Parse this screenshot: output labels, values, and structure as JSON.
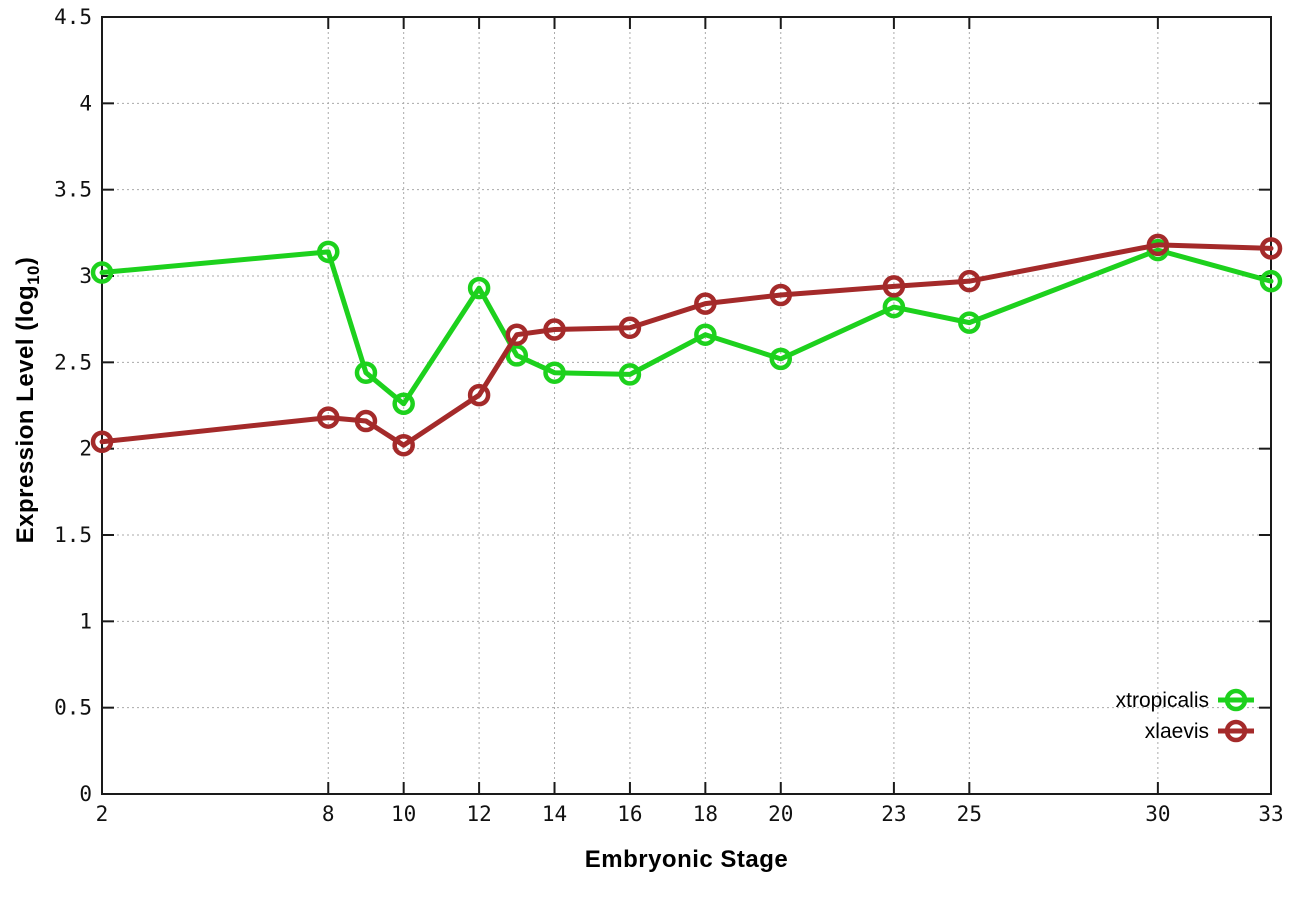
{
  "chart_data": {
    "type": "line",
    "title": "",
    "xlabel": "Embryonic Stage",
    "ylabel": {
      "prefix": "Expression Level (log",
      "sub": "10",
      "suffix": ")"
    },
    "xlim": [
      2,
      33
    ],
    "ylim": [
      0,
      4.5
    ],
    "grid": true,
    "legend_position": "bottom-right",
    "xticks": [
      2,
      8,
      10,
      12,
      14,
      16,
      18,
      20,
      23,
      25,
      30,
      33
    ],
    "xtick_labels": [
      "2",
      "8",
      "10",
      "12",
      "14",
      "16",
      "18",
      "20",
      "23",
      "25",
      "30",
      "33"
    ],
    "yticks": [
      0,
      0.5,
      1,
      1.5,
      2,
      2.5,
      3,
      3.5,
      4,
      4.5
    ],
    "ytick_labels": [
      "0",
      "0.5",
      "1",
      "1.5",
      "2",
      "2.5",
      "3",
      "3.5",
      "4",
      "4.5"
    ],
    "x": [
      2,
      8,
      9,
      10,
      12,
      13,
      14,
      16,
      18,
      20,
      23,
      25,
      30,
      33
    ],
    "series": [
      {
        "name": "xtropicalis",
        "color": "#1dd11d",
        "values": [
          3.02,
          3.14,
          2.44,
          2.26,
          2.93,
          2.54,
          2.44,
          2.43,
          2.66,
          2.52,
          2.82,
          2.73,
          3.15,
          2.97
        ]
      },
      {
        "name": "xlaevis",
        "color": "#a42a2a",
        "values": [
          2.04,
          2.18,
          2.16,
          2.02,
          2.31,
          2.66,
          2.69,
          2.7,
          2.84,
          2.89,
          2.94,
          2.97,
          3.18,
          3.16
        ]
      }
    ],
    "colors": {
      "border": "#1a1a1a",
      "grid": "#aaaaaa",
      "tick_text": "#111111"
    }
  }
}
